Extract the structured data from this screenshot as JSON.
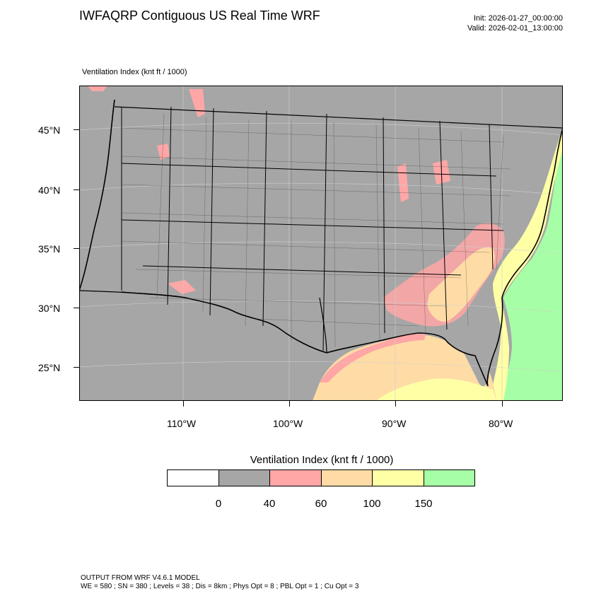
{
  "title": "IWFAQRP Contiguous US Real Time WRF",
  "init": "Init: 2026-01-27_00:00:00",
  "valid": "Valid: 2026-02-01_13:00:00",
  "field_label": "Ventilation Index   (knt ft / 1000)",
  "lat_labels": [
    "45°N",
    "40°N",
    "35°N",
    "30°N",
    "25°N"
  ],
  "lon_labels": [
    "110°W",
    "100°W",
    "90°W",
    "80°W"
  ],
  "colorbar": {
    "title": "Ventilation Index  (knt ft / 1000)",
    "colors": [
      "#ffffff",
      "#a6a6a6",
      "#ffa6a6",
      "#ffdca6",
      "#ffffa6",
      "#a6ffa6"
    ],
    "ticks": [
      "0",
      "40",
      "60",
      "100",
      "150"
    ]
  },
  "colors": {
    "land_gray": "#a6a6a6",
    "pink": "#ffa6a6",
    "orange": "#ffdca6",
    "yellow": "#ffffa6",
    "green": "#a6ffa6"
  },
  "footer": {
    "line1": "OUTPUT FROM WRF V4.6.1 MODEL",
    "line2": "WE = 580 ; SN = 380 ; Levels = 38 ; Dis = 8km ; Phys Opt = 8 ; PBL Opt = 1 ; Cu Opt = 3"
  }
}
